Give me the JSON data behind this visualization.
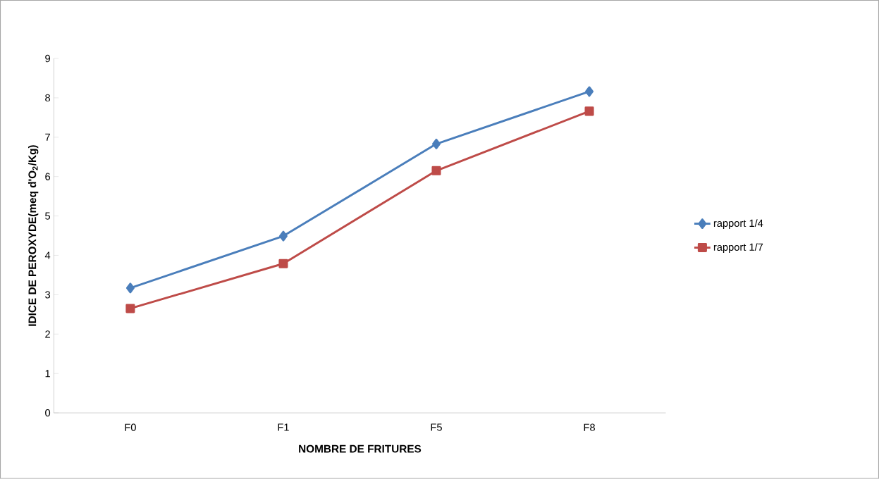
{
  "chart_data": {
    "type": "line",
    "xlabel": "NOMBRE DE FRITURES",
    "ylabel": "IDICE DE PEROXYDE(meq d'O$_{2}$/Kg)",
    "categories": [
      "F0",
      "F1",
      "F5",
      "F8"
    ],
    "series": [
      {
        "name": "rapport 1/4",
        "color": "#4a7ebb",
        "marker": "diamond",
        "values": [
          3.17,
          4.49,
          6.83,
          8.16
        ]
      },
      {
        "name": "rapport 1/7",
        "color": "#be4b48",
        "marker": "square",
        "values": [
          2.65,
          3.79,
          6.15,
          7.66
        ]
      }
    ],
    "ylim": [
      0,
      9
    ],
    "yticks": [
      0,
      1,
      2,
      3,
      4,
      5,
      6,
      7,
      8,
      9
    ],
    "grid": false,
    "legend": "right"
  }
}
